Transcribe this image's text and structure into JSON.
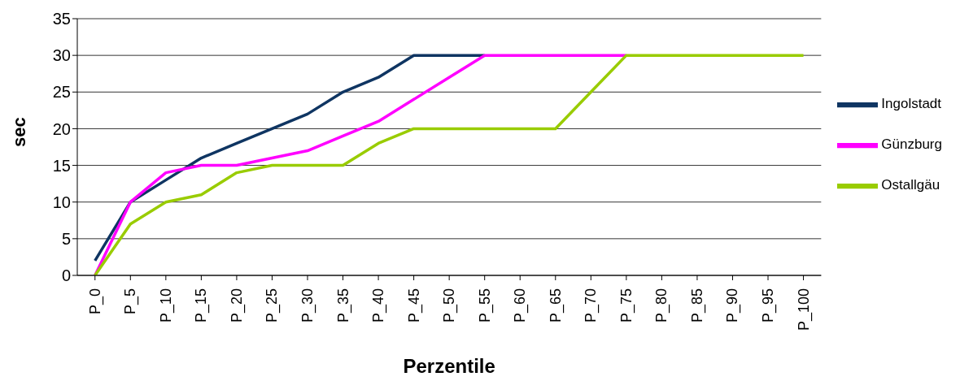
{
  "chart_data": {
    "type": "line",
    "xlabel": "Perzentile",
    "ylabel": "sec",
    "categories": [
      "P_0",
      "P_5",
      "P_10",
      "P_15",
      "P_20",
      "P_25",
      "P_30",
      "P_35",
      "P_40",
      "P_45",
      "P_50",
      "P_55",
      "P_60",
      "P_65",
      "P_70",
      "P_75",
      "P_80",
      "P_85",
      "P_90",
      "P_95",
      "P_100"
    ],
    "series": [
      {
        "name": "Ingolstadt",
        "color": "#0f3562",
        "values": [
          2,
          10,
          13,
          16,
          18,
          20,
          22,
          25,
          27,
          30,
          30,
          30,
          null,
          null,
          null,
          null,
          null,
          null,
          null,
          null,
          null
        ]
      },
      {
        "name": "Günzburg",
        "color": "#ff00ff",
        "values": [
          0,
          10,
          14,
          15,
          15,
          16,
          17,
          19,
          21,
          24,
          27,
          30,
          30,
          30,
          30,
          30,
          null,
          null,
          null,
          null,
          null
        ]
      },
      {
        "name": "Ostallgäu",
        "color": "#99cc00",
        "values": [
          0,
          7,
          10,
          11,
          14,
          15,
          15,
          15,
          18,
          20,
          20,
          20,
          20,
          20,
          25,
          30,
          30,
          30,
          30,
          30,
          30
        ]
      }
    ],
    "ylim": [
      0,
      35
    ],
    "yticks": [
      0,
      5,
      10,
      15,
      20,
      25,
      30,
      35
    ],
    "grid": "y",
    "legend": "right",
    "marker": "none",
    "line_style": "solid"
  }
}
